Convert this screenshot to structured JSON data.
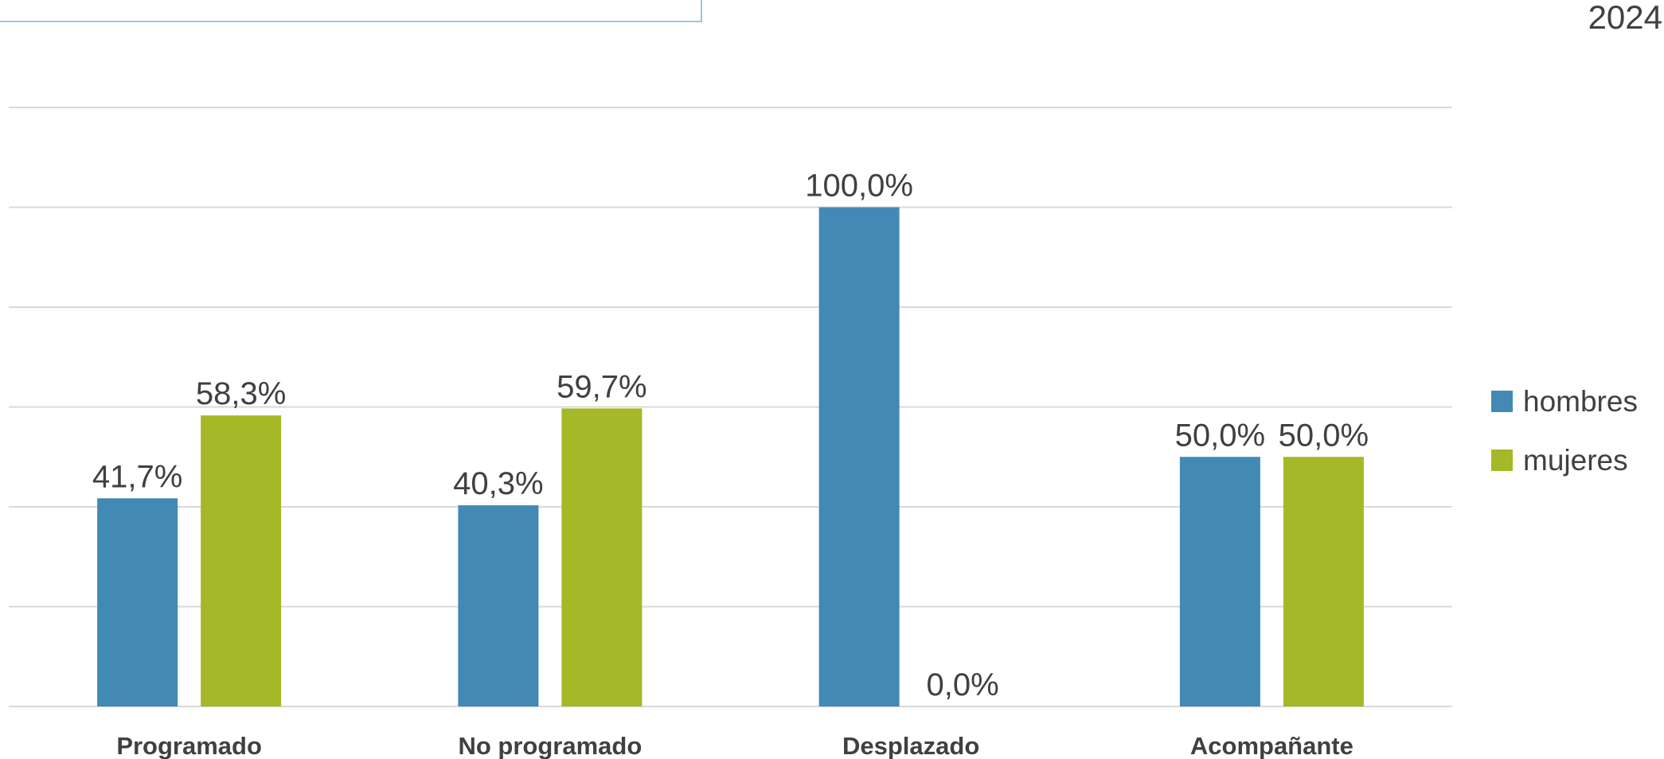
{
  "chart_data": {
    "type": "bar",
    "title": "2024",
    "categories": [
      "Programado",
      "No programado",
      "Desplazado",
      "Acompañante"
    ],
    "series": [
      {
        "name": "hombres",
        "color": "#4289b5",
        "values": [
          41.7,
          40.3,
          100,
          50
        ],
        "value_labels": [
          "41,7%",
          "40,3%",
          "100,0%",
          "50,0%"
        ]
      },
      {
        "name": "mujeres",
        "color": "#a5b827",
        "values": [
          58.3,
          59.7,
          0,
          50
        ],
        "value_labels": [
          "58,3%",
          "59,7%",
          "0,0%",
          "50,0%"
        ]
      }
    ],
    "ylim": [
      0,
      120
    ],
    "yticks": [
      0,
      20,
      40,
      60,
      80,
      100,
      120
    ],
    "grid": true,
    "legend": "right"
  }
}
